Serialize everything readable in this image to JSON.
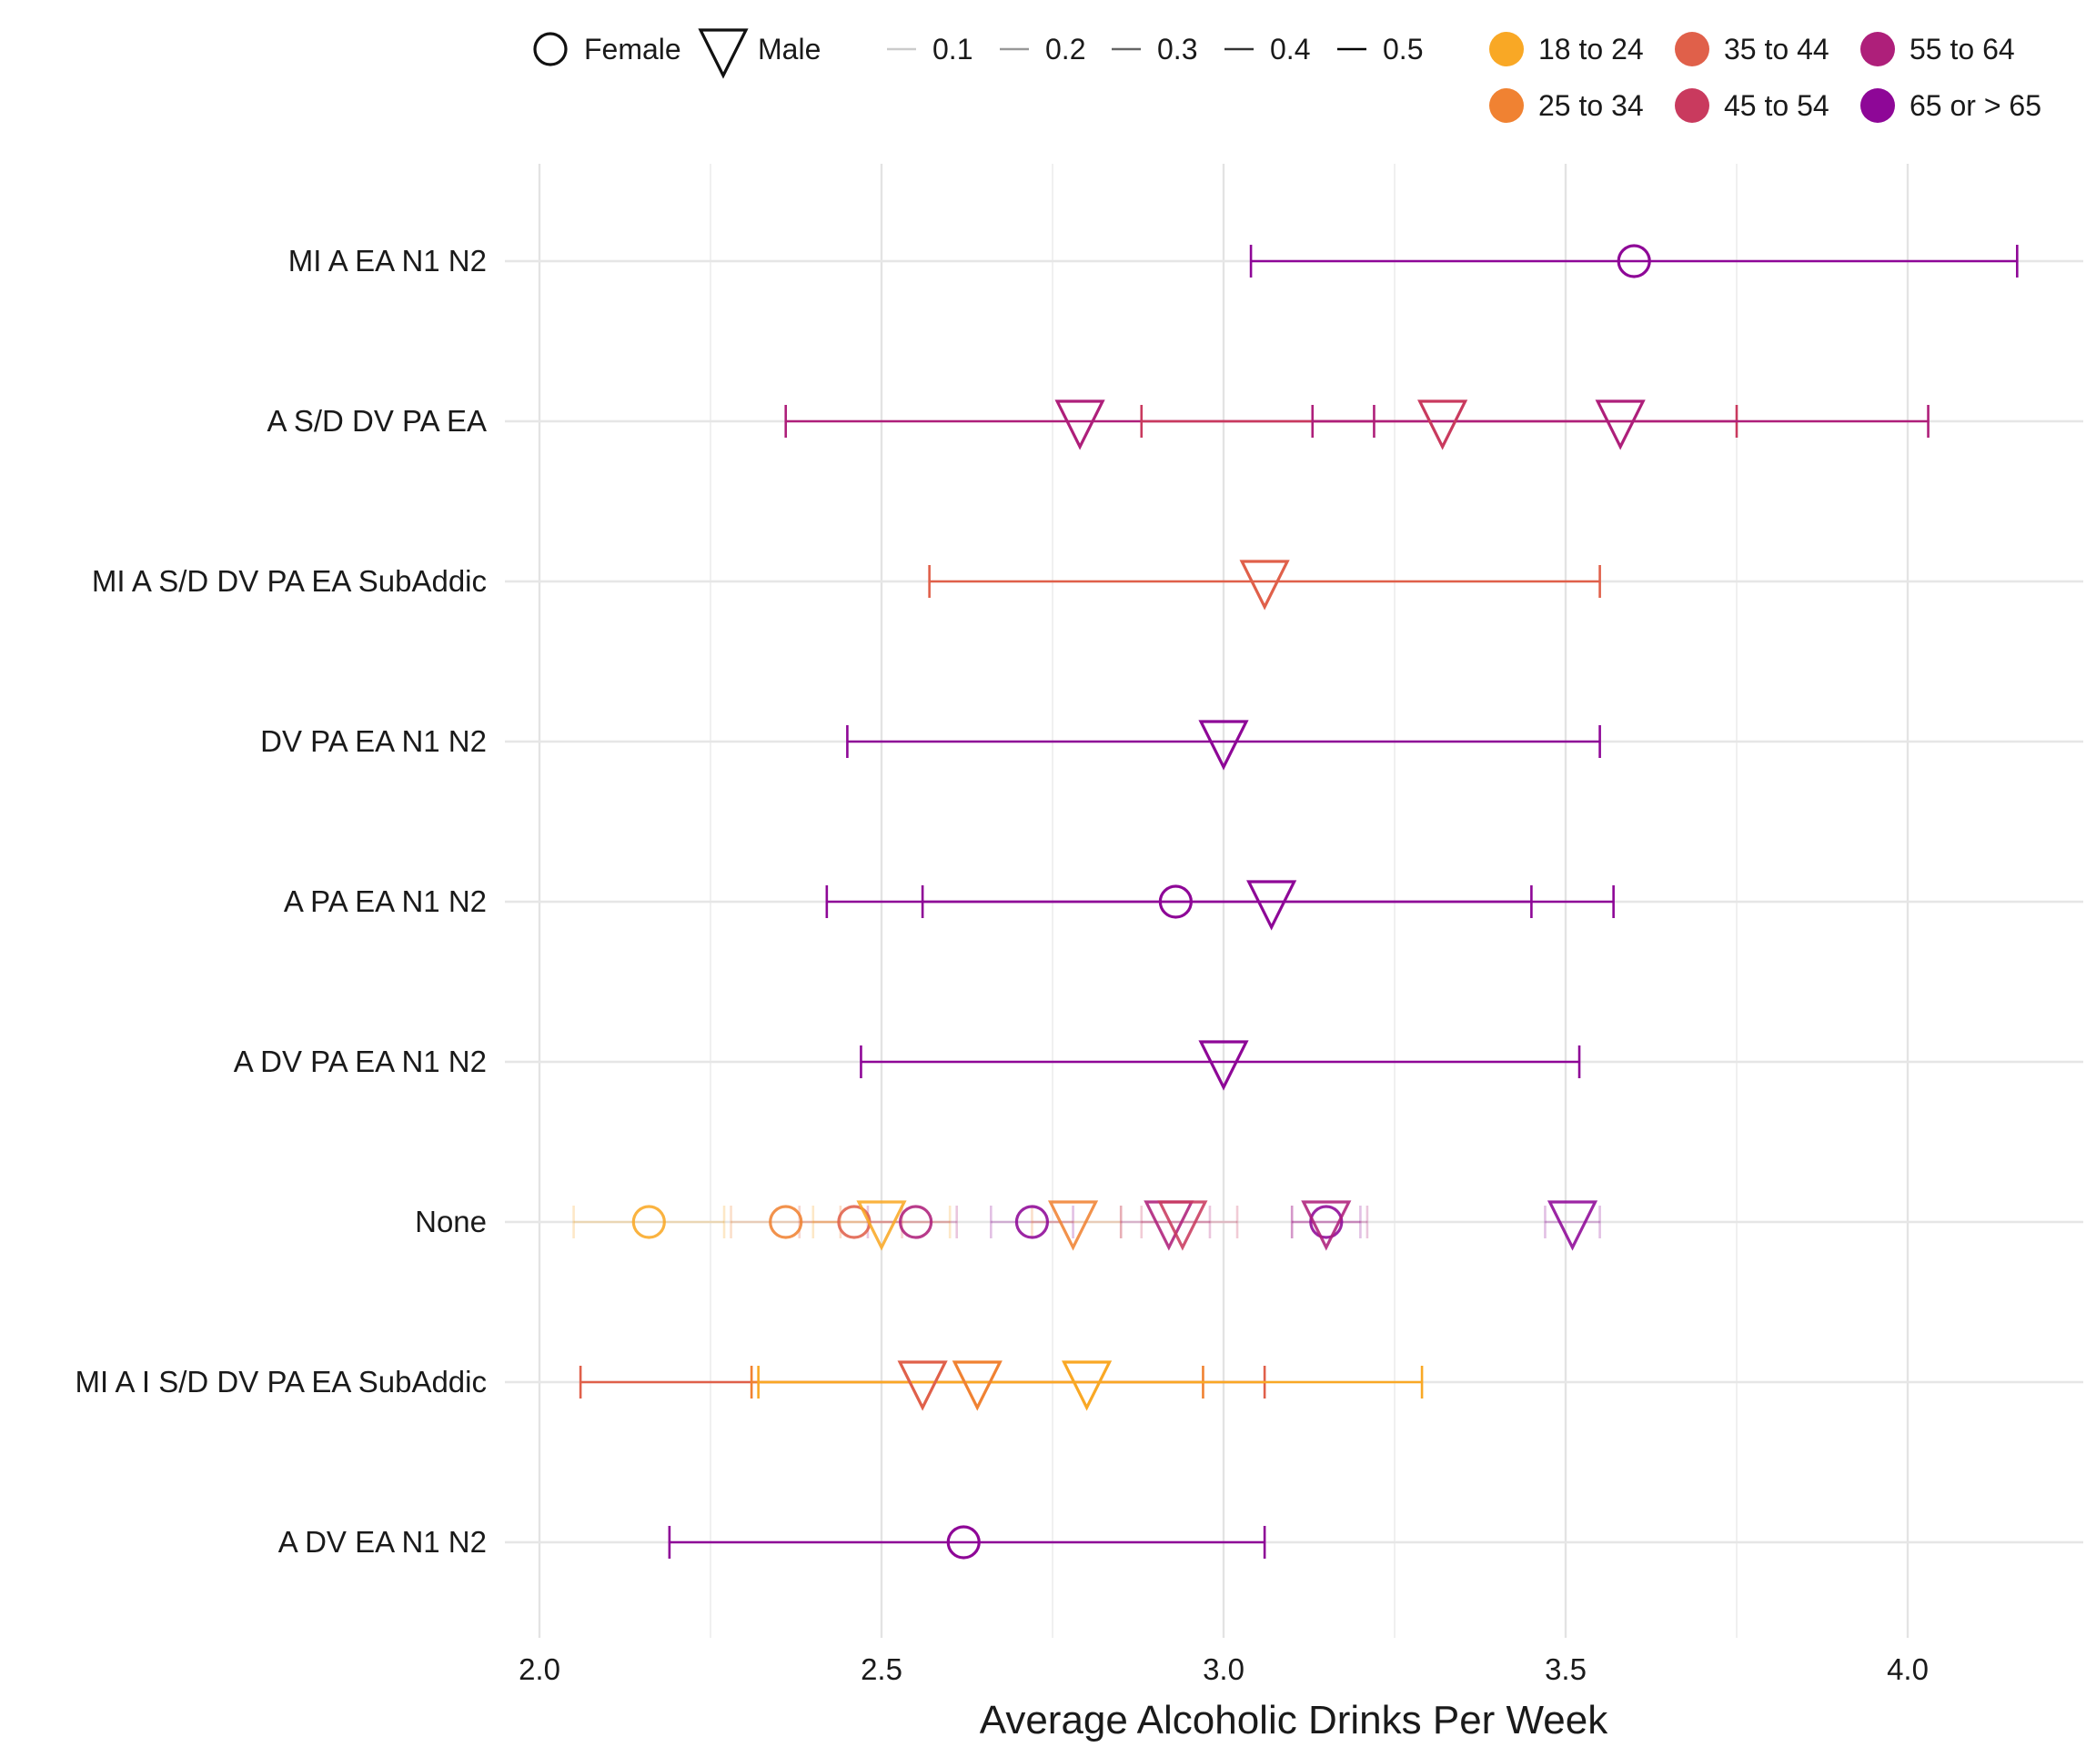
{
  "chart_data": {
    "type": "scatter",
    "title": "",
    "xlabel": "Average Alcoholic Drinks Per Week",
    "ylabel": "",
    "xlim": [
      1.95,
      4.25
    ],
    "x_ticks": [
      "2.0",
      "2.5",
      "3.0",
      "3.5",
      "4.0"
    ],
    "grid": true,
    "legend_position": "top-right",
    "categories": [
      "MI A EA N1 N2",
      "A S/D DV PA EA",
      "MI A S/D DV PA EA SubAddic",
      "DV PA EA N1 N2",
      "A PA EA N1 N2",
      "A DV PA EA N1 N2",
      "None",
      "MI A I S/D DV PA EA SubAddic",
      "A DV EA N1 N2"
    ],
    "legend": {
      "shape": [
        {
          "label": "Female",
          "shape": "circle"
        },
        {
          "label": "Male",
          "shape": "triangle-down"
        }
      ],
      "alpha": [
        {
          "label": "0.1",
          "alpha": 0.1
        },
        {
          "label": "0.2",
          "alpha": 0.2
        },
        {
          "label": "0.3",
          "alpha": 0.3
        },
        {
          "label": "0.4",
          "alpha": 0.4
        },
        {
          "label": "0.5",
          "alpha": 0.5
        }
      ],
      "age_groups": [
        {
          "label": "18 to 24",
          "color": "#F9A825"
        },
        {
          "label": "25 to 34",
          "color": "#F08232"
        },
        {
          "label": "35 to 44",
          "color": "#E0604A"
        },
        {
          "label": "45 to 54",
          "color": "#C93A5E"
        },
        {
          "label": "55 to 64",
          "color": "#AE1F7A"
        },
        {
          "label": "65 or > 65",
          "color": "#8E0797"
        }
      ]
    },
    "points": [
      {
        "category": "MI A EA N1 N2",
        "sex": "Female",
        "age": "65 or > 65",
        "x": 3.6,
        "lo": 3.04,
        "hi": 4.16,
        "alpha": 1.0
      },
      {
        "category": "A S/D DV PA EA",
        "sex": "Male",
        "age": "55 to 64",
        "x": 2.79,
        "lo": 2.36,
        "hi": 3.22,
        "alpha": 1.0
      },
      {
        "category": "A S/D DV PA EA",
        "sex": "Male",
        "age": "45 to 54",
        "x": 3.32,
        "lo": 2.88,
        "hi": 3.75,
        "alpha": 1.0
      },
      {
        "category": "A S/D DV PA EA",
        "sex": "Male",
        "age": "55 to 64",
        "x": 3.58,
        "lo": 3.13,
        "hi": 4.03,
        "alpha": 1.0
      },
      {
        "category": "MI A S/D DV PA EA SubAddic",
        "sex": "Male",
        "age": "35 to 44",
        "x": 3.06,
        "lo": 2.57,
        "hi": 3.55,
        "alpha": 1.0
      },
      {
        "category": "DV PA EA N1 N2",
        "sex": "Male",
        "age": "65 or > 65",
        "x": 3.0,
        "lo": 2.45,
        "hi": 3.55,
        "alpha": 1.0
      },
      {
        "category": "A PA EA N1 N2",
        "sex": "Female",
        "age": "65 or > 65",
        "x": 2.93,
        "lo": 2.42,
        "hi": 3.45,
        "alpha": 1.0
      },
      {
        "category": "A PA EA N1 N2",
        "sex": "Male",
        "age": "65 or > 65",
        "x": 3.07,
        "lo": 2.56,
        "hi": 3.57,
        "alpha": 1.0
      },
      {
        "category": "A DV PA EA N1 N2",
        "sex": "Male",
        "age": "65 or > 65",
        "x": 3.0,
        "lo": 2.47,
        "hi": 3.52,
        "alpha": 1.0
      },
      {
        "category": "None",
        "sex": "Female",
        "age": "18 to 24",
        "x": 2.16,
        "lo": 2.05,
        "hi": 2.27,
        "alpha": 0.25
      },
      {
        "category": "None",
        "sex": "Female",
        "age": "25 to 34",
        "x": 2.36,
        "lo": 2.28,
        "hi": 2.44,
        "alpha": 0.25
      },
      {
        "category": "None",
        "sex": "Female",
        "age": "35 to 44",
        "x": 2.46,
        "lo": 2.38,
        "hi": 2.53,
        "alpha": 0.25
      },
      {
        "category": "None",
        "sex": "Male",
        "age": "18 to 24",
        "x": 2.5,
        "lo": 2.4,
        "hi": 2.6,
        "alpha": 0.25
      },
      {
        "category": "None",
        "sex": "Female",
        "age": "55 to 64",
        "x": 2.55,
        "lo": 2.48,
        "hi": 2.61,
        "alpha": 0.25
      },
      {
        "category": "None",
        "sex": "Female",
        "age": "65 or > 65",
        "x": 2.72,
        "lo": 2.66,
        "hi": 2.78,
        "alpha": 0.25
      },
      {
        "category": "None",
        "sex": "Male",
        "age": "25 to 34",
        "x": 2.78,
        "lo": 2.72,
        "hi": 2.85,
        "alpha": 0.25
      },
      {
        "category": "None",
        "sex": "Male",
        "age": "55 to 64",
        "x": 2.92,
        "lo": 2.85,
        "hi": 2.98,
        "alpha": 0.25
      },
      {
        "category": "None",
        "sex": "Male",
        "age": "45 to 54",
        "x": 2.94,
        "lo": 2.88,
        "hi": 3.02,
        "alpha": 0.25
      },
      {
        "category": "None",
        "sex": "Female",
        "age": "65 or > 65",
        "x": 3.15,
        "lo": 3.1,
        "hi": 3.2,
        "alpha": 0.25
      },
      {
        "category": "None",
        "sex": "Male",
        "age": "55 to 64",
        "x": 3.15,
        "lo": 3.1,
        "hi": 3.21,
        "alpha": 0.25
      },
      {
        "category": "None",
        "sex": "Male",
        "age": "65 or > 65",
        "x": 3.51,
        "lo": 3.47,
        "hi": 3.55,
        "alpha": 0.25
      },
      {
        "category": "MI A I S/D DV PA EA SubAddic",
        "sex": "Male",
        "age": "35 to 44",
        "x": 2.56,
        "lo": 2.06,
        "hi": 3.06,
        "alpha": 1.0
      },
      {
        "category": "MI A I S/D DV PA EA SubAddic",
        "sex": "Male",
        "age": "25 to 34",
        "x": 2.64,
        "lo": 2.31,
        "hi": 2.97,
        "alpha": 1.0
      },
      {
        "category": "MI A I S/D DV PA EA SubAddic",
        "sex": "Male",
        "age": "18 to 24",
        "x": 2.8,
        "lo": 2.32,
        "hi": 3.29,
        "alpha": 1.0
      },
      {
        "category": "A DV EA N1 N2",
        "sex": "Female",
        "age": "65 or > 65",
        "x": 2.62,
        "lo": 2.19,
        "hi": 3.06,
        "alpha": 1.0
      }
    ]
  }
}
